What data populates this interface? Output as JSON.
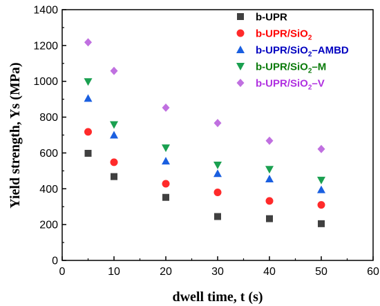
{
  "chart_data": {
    "type": "scatter",
    "xlabel": "dwell time, t (s)",
    "ylabel": "Yield  strength, Ys (MPa)",
    "xlim": [
      0,
      60
    ],
    "ylim": [
      0,
      1400
    ],
    "xticks": [
      "0",
      "10",
      "20",
      "30",
      "40",
      "50",
      "60"
    ],
    "yticks": [
      "0",
      "200",
      "400",
      "600",
      "800",
      "1000",
      "1200",
      "1400"
    ],
    "legend_position": "top-right",
    "grid": false,
    "x": [
      5,
      10,
      20,
      30,
      40,
      50
    ],
    "series": [
      {
        "name_main": "b-UPR",
        "name_sub": "",
        "name_tail": "",
        "color": "#404040",
        "marker": "square",
        "values": [
          598,
          468,
          352,
          245,
          233,
          205
        ]
      },
      {
        "name_main": "b-UPR/SiO",
        "name_sub": "2",
        "name_tail": "",
        "color": "#ff2a2a",
        "marker": "circle",
        "values": [
          718,
          548,
          428,
          380,
          332,
          310
        ]
      },
      {
        "name_main": "b-UPR/SiO",
        "name_sub": "2",
        "name_tail": "–AMBD",
        "color": "#1a5fe0",
        "marker": "triangle-up",
        "values": [
          905,
          700,
          555,
          485,
          455,
          395
        ]
      },
      {
        "name_main": "b-UPR/SiO",
        "name_sub": "2",
        "name_tail": "–M",
        "color": "#1aa050",
        "marker": "triangle-down",
        "values": [
          998,
          758,
          628,
          532,
          508,
          448
        ]
      },
      {
        "name_main": "b-UPR/SiO",
        "name_sub": "2",
        "name_tail": "–V",
        "color": "#c070e0",
        "marker": "diamond",
        "values": [
          1218,
          1058,
          853,
          767,
          668,
          622
        ]
      }
    ]
  },
  "legend_text_colors": [
    "#000000",
    "#ff0000",
    "#0000c0",
    "#0a7a0a",
    "#b030e0"
  ]
}
